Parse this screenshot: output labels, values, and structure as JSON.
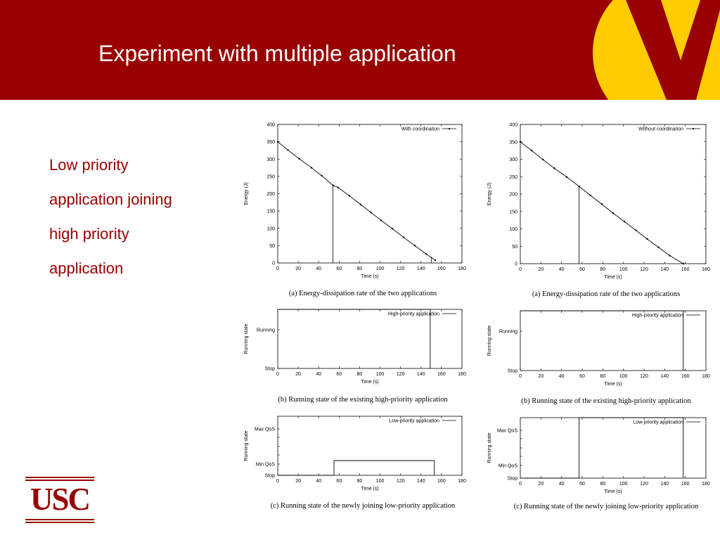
{
  "slide": {
    "title": "Experiment with multiple application",
    "bullet_lines": [
      "Low priority",
      "application joining",
      "high priority",
      "application"
    ],
    "logo_text": "USC",
    "colors": {
      "header": "#990000",
      "accent": "#ffcc00",
      "text": "#990000"
    }
  },
  "chart_data": [
    {
      "type": "line",
      "legend": "With coordination",
      "caption": "(a) Energy-dissipation rate of the two applications",
      "xlabel": "Time (s)",
      "ylabel": "Energy (J)",
      "xlim": [
        0,
        180
      ],
      "ylim": [
        0,
        400
      ],
      "xticks": [
        "0",
        "20",
        "40",
        "60",
        "80",
        "100",
        "120",
        "140",
        "160",
        "180"
      ],
      "yticks": [
        "0",
        "50",
        "100",
        "150",
        "200",
        "250",
        "300",
        "350",
        "400"
      ],
      "series": [
        {
          "x": [
            0,
            10,
            21,
            33,
            43,
            54,
            59,
            70,
            81,
            91,
            101,
            112,
            123,
            134,
            145,
            154
          ],
          "y": [
            350,
            326,
            301,
            275,
            252,
            224,
            218,
            194,
            169,
            146,
            123,
            99,
            74,
            50,
            26,
            8
          ]
        }
      ],
      "event_lines": [
        {
          "x": 54,
          "y": 224
        },
        {
          "x": 150,
          "y": 18
        }
      ]
    },
    {
      "type": "line",
      "legend": "Without coordination",
      "caption": "(a) Energy-dissipation rate of the two applications",
      "xlabel": "Time (s)",
      "ylabel": "Energy (J)",
      "xlim": [
        0,
        180
      ],
      "ylim": [
        0,
        400
      ],
      "xticks": [
        "0",
        "20",
        "40",
        "60",
        "80",
        "100",
        "120",
        "140",
        "160",
        "180"
      ],
      "yticks": [
        "0",
        "50",
        "100",
        "150",
        "200",
        "250",
        "300",
        "350",
        "400"
      ],
      "series": [
        {
          "x": [
            0,
            11,
            22,
            33,
            45,
            57,
            68,
            79,
            90,
            101,
            112,
            123,
            134,
            145,
            158
          ],
          "y": [
            350,
            325,
            299,
            274,
            249,
            222,
            196,
            171,
            145,
            121,
            96,
            71,
            47,
            23,
            0
          ]
        }
      ],
      "event_lines": [
        {
          "x": 57,
          "y": 222
        }
      ]
    },
    {
      "type": "line",
      "legend": "High-priority application",
      "caption": "(b) Running state of the existing high-priority application",
      "xlabel": "Time (s)",
      "ylabel": "Running state",
      "xlim": [
        0,
        180
      ],
      "ylim": [
        0,
        1
      ],
      "xticks": [
        "0",
        "20",
        "40",
        "60",
        "80",
        "100",
        "120",
        "140",
        "160",
        "180"
      ],
      "ycategories": [
        "Stop",
        "Running"
      ],
      "series": [
        {
          "x": [
            0,
            149,
            149
          ],
          "y": [
            1,
            1,
            0
          ]
        }
      ]
    },
    {
      "type": "line",
      "legend": "High-priority application",
      "caption": "(b) Running state of the existing high-priority application",
      "xlabel": "Time (s)",
      "ylabel": "Running state",
      "xlim": [
        0,
        180
      ],
      "ylim": [
        0,
        1
      ],
      "xticks": [
        "0",
        "20",
        "40",
        "60",
        "80",
        "100",
        "120",
        "140",
        "160",
        "180"
      ],
      "ycategories": [
        "Stop",
        "Running"
      ],
      "series": [
        {
          "x": [
            0,
            158,
            158
          ],
          "y": [
            1,
            1,
            0
          ]
        }
      ]
    },
    {
      "type": "line",
      "legend": "Low-priority application",
      "caption": "(c) Running state of the newly joining low-priority application",
      "xlabel": "Time (s)",
      "ylabel": "Running state",
      "xlim": [
        0,
        180
      ],
      "ylim": [
        0,
        4
      ],
      "xticks": [
        "0",
        "20",
        "40",
        "60",
        "80",
        "100",
        "120",
        "140",
        "160",
        "180"
      ],
      "ycategories": [
        "Stop",
        "Min QoS",
        "Max QoS"
      ],
      "series": [
        {
          "x": [
            0,
            55,
            55,
            153,
            153
          ],
          "y": [
            0,
            0,
            1,
            1,
            0
          ]
        }
      ]
    },
    {
      "type": "line",
      "legend": "Low-priority application",
      "caption": "(c) Running state of the newly joining low-priority application",
      "xlabel": "Time (s)",
      "ylabel": "Running state",
      "xlim": [
        0,
        180
      ],
      "ylim": [
        0,
        4
      ],
      "xticks": [
        "0",
        "20",
        "40",
        "60",
        "80",
        "100",
        "120",
        "140",
        "160",
        "180"
      ],
      "ycategories": [
        "Stop",
        "Min QoS",
        "Max QoS"
      ],
      "series": [
        {
          "x": [
            0,
            57,
            57,
            158,
            158
          ],
          "y": [
            0,
            0,
            4,
            4,
            0
          ]
        }
      ]
    }
  ]
}
